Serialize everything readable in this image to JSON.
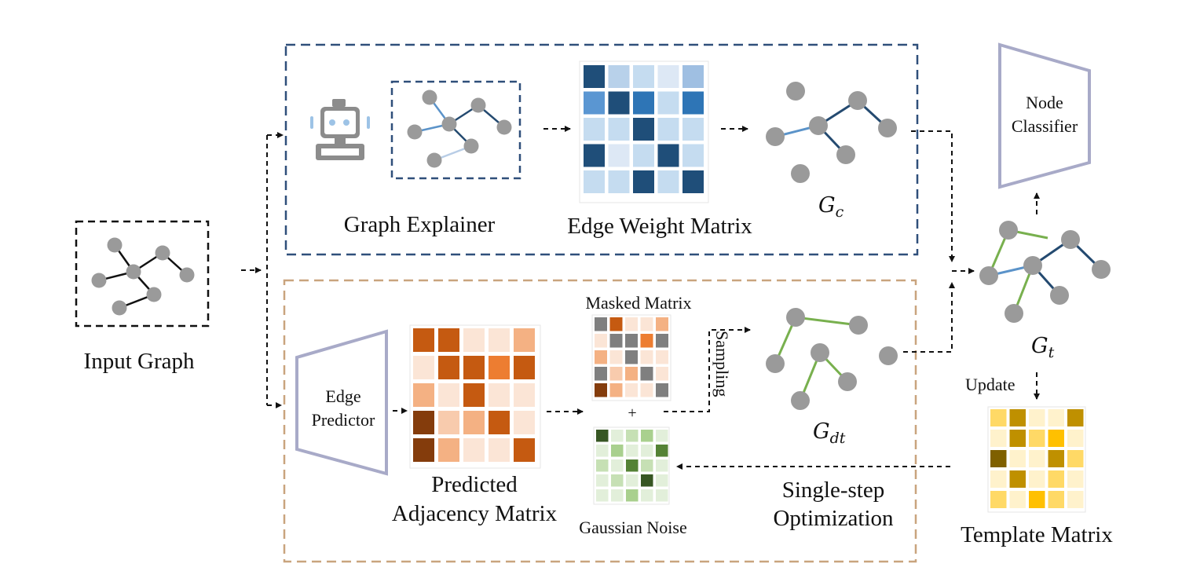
{
  "labels": {
    "input_graph": "Input Graph",
    "graph_explainer": "Graph Explainer",
    "edge_weight_matrix": "Edge Weight Matrix",
    "g_c_main": "G",
    "g_c_sub": "c",
    "node_classifier_line1": "Node",
    "node_classifier_line2": "Classifier",
    "g_t_main": "G",
    "g_t_sub": "t",
    "update": "Update",
    "template_matrix": "Template Matrix",
    "edge_predictor_line1": "Edge",
    "edge_predictor_line2": "Predictor",
    "predicted_line1": "Predicted",
    "predicted_line2": "Adjacency Matrix",
    "masked_matrix": "Masked Matrix",
    "plus": "+",
    "gaussian_noise": "Gaussian Noise",
    "sampling": "Sampling",
    "g_dt_main": "G",
    "g_dt_sub": "dt",
    "single_step_line1": "Single-step",
    "single_step_line2": "Optimization"
  },
  "colors": {
    "explainer_box": "#2f4f7a",
    "generator_box": "#c9a47e",
    "node": "#9a9a9a",
    "edge_black": "#111111",
    "edge_dark_blue": "#244a70",
    "edge_light_blue": "#5b93c9",
    "edge_pale_blue": "#b8cde6",
    "edge_green": "#78b04e",
    "trapezoid": "#a8aac8"
  },
  "matrices": {
    "edge_weight": [
      [
        "#1f4e79",
        "#b8d1ea",
        "#c5dcf0",
        "#dde8f5",
        "#9fbfe2"
      ],
      [
        "#5a96d2",
        "#1f4e79",
        "#2e75b6",
        "#c5dcf0",
        "#2e75b6"
      ],
      [
        "#c5dcf0",
        "#c5dcf0",
        "#1f4e79",
        "#c5dcf0",
        "#c5dcf0"
      ],
      [
        "#1f4e79",
        "#dde8f5",
        "#c5dcf0",
        "#1f4e79",
        "#c5dcf0"
      ],
      [
        "#c5dcf0",
        "#c5dcf0",
        "#1f4e79",
        "#c5dcf0",
        "#1f4e79"
      ]
    ],
    "predicted": [
      [
        "#c55a11",
        "#c55a11",
        "#fbe5d6",
        "#fbe5d6",
        "#f4b183"
      ],
      [
        "#fbe5d6",
        "#c55a11",
        "#c55a11",
        "#ed7d31",
        "#c55a11"
      ],
      [
        "#f4b183",
        "#fbe5d6",
        "#c55a11",
        "#fbe5d6",
        "#fbe5d6"
      ],
      [
        "#843c0c",
        "#f8cbad",
        "#f4b183",
        "#c55a11",
        "#fbe5d6"
      ],
      [
        "#843c0c",
        "#f4b183",
        "#fbe5d6",
        "#fbe5d6",
        "#c55a11"
      ]
    ],
    "masked": [
      [
        "#7f7f7f",
        "#c55a11",
        "#fbe5d6",
        "#fbe5d6",
        "#f4b183"
      ],
      [
        "#fbe5d6",
        "#7f7f7f",
        "#7f7f7f",
        "#ed7d31",
        "#7f7f7f"
      ],
      [
        "#f4b183",
        "#fbe5d6",
        "#7f7f7f",
        "#fbe5d6",
        "#fbe5d6"
      ],
      [
        "#7f7f7f",
        "#f8cbad",
        "#f4b183",
        "#7f7f7f",
        "#fbe5d6"
      ],
      [
        "#843c0c",
        "#f4b183",
        "#fbe5d6",
        "#fbe5d6",
        "#7f7f7f"
      ]
    ],
    "noise": [
      [
        "#375623",
        "#e2efda",
        "#c6e0b4",
        "#a9d08e",
        "#e2efda"
      ],
      [
        "#e2efda",
        "#a9d08e",
        "#e2efda",
        "#e2efda",
        "#548235"
      ],
      [
        "#c6e0b4",
        "#e2efda",
        "#548235",
        "#c6e0b4",
        "#e2efda"
      ],
      [
        "#e2efda",
        "#c6e0b4",
        "#e2efda",
        "#375623",
        "#e2efda"
      ],
      [
        "#e2efda",
        "#e2efda",
        "#a9d08e",
        "#e2efda",
        "#e2efda"
      ]
    ],
    "template": [
      [
        "#ffd966",
        "#bf9000",
        "#fff2cc",
        "#fff2cc",
        "#bf9000"
      ],
      [
        "#fff2cc",
        "#bf9000",
        "#ffd966",
        "#ffc000",
        "#fff2cc"
      ],
      [
        "#7f6000",
        "#fff2cc",
        "#fff2cc",
        "#bf9000",
        "#ffd966"
      ],
      [
        "#fff2cc",
        "#bf9000",
        "#fff2cc",
        "#ffd966",
        "#fff2cc"
      ],
      [
        "#ffd966",
        "#fff2cc",
        "#ffc000",
        "#ffd966",
        "#fff2cc"
      ]
    ]
  }
}
